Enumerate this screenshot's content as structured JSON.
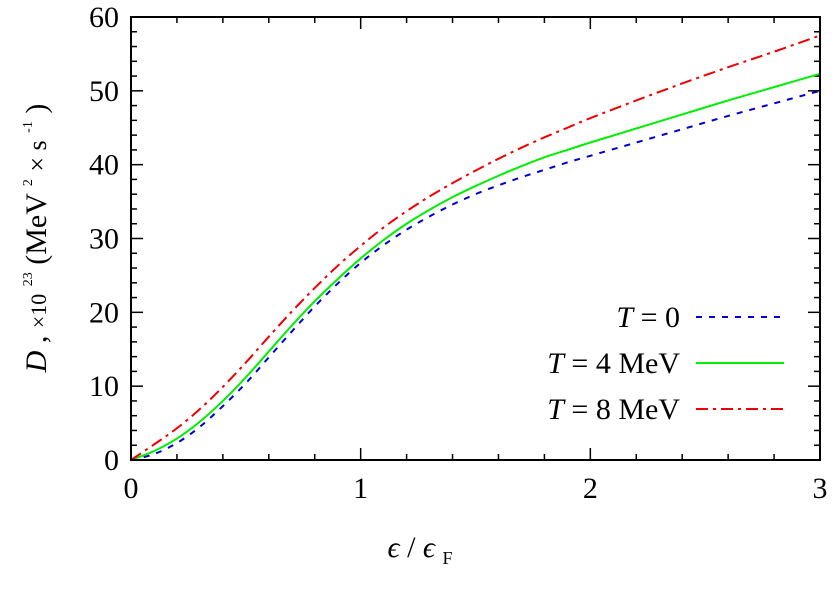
{
  "chart_data": {
    "type": "line",
    "xlabel": {
      "symbol": "ϵ",
      "slash": "/",
      "denom": "ϵ",
      "denom_sub": "F"
    },
    "ylabel": {
      "symbol": "D",
      "comma": ",",
      "factor": "×10",
      "factor_exp": "23",
      "units": "(MeV",
      "u_exp": "2",
      "times": "× s",
      "s_exp": "-1",
      "close": ")"
    },
    "xlim": [
      0,
      3
    ],
    "ylim": [
      0,
      60
    ],
    "x_ticks": [
      0,
      1,
      2,
      3
    ],
    "y_ticks": [
      0,
      10,
      20,
      30,
      40,
      50,
      60
    ],
    "grid": false,
    "legend_position": "bottom-right",
    "series": [
      {
        "name": "T = 0",
        "legend_italic": "T",
        "legend_rest": " = 0",
        "color": "#0000cc",
        "dash": "6,7",
        "x": [
          0,
          0.1,
          0.2,
          0.3,
          0.4,
          0.5,
          0.6,
          0.7,
          0.8,
          0.9,
          1.0,
          1.1,
          1.2,
          1.3,
          1.4,
          1.5,
          1.6,
          1.7,
          1.8,
          1.9,
          2.0,
          2.2,
          2.4,
          2.6,
          2.8,
          3.0
        ],
        "y": [
          0,
          0.8,
          2.3,
          4.5,
          7.3,
          10.4,
          13.9,
          17.4,
          20.8,
          23.9,
          26.7,
          29.1,
          31.2,
          33.0,
          34.6,
          36.0,
          37.2,
          38.3,
          39.3,
          40.3,
          41.2,
          43.0,
          44.8,
          46.6,
          48.3,
          50.0
        ]
      },
      {
        "name": "T = 4 MeV",
        "legend_italic": "T",
        "legend_rest": " = 4 MeV",
        "color": "#00ee00",
        "dash": "",
        "x": [
          0,
          0.1,
          0.2,
          0.3,
          0.4,
          0.5,
          0.6,
          0.7,
          0.8,
          0.9,
          1.0,
          1.1,
          1.2,
          1.3,
          1.4,
          1.5,
          1.6,
          1.7,
          1.8,
          1.9,
          2.0,
          2.2,
          2.4,
          2.6,
          2.8,
          3.0
        ],
        "y": [
          0,
          1.2,
          2.9,
          5.2,
          8.0,
          11.2,
          14.7,
          18.2,
          21.5,
          24.5,
          27.3,
          29.8,
          32.0,
          33.9,
          35.6,
          37.1,
          38.5,
          39.8,
          41.0,
          42.0,
          43.0,
          44.9,
          46.8,
          48.7,
          50.5,
          52.3
        ]
      },
      {
        "name": "T = 8 MeV",
        "legend_italic": "T",
        "legend_rest": " = 8 MeV",
        "color": "#ee0000",
        "dash": "12,5,3,5",
        "x": [
          0,
          0.1,
          0.2,
          0.3,
          0.4,
          0.5,
          0.6,
          0.7,
          0.8,
          0.9,
          1.0,
          1.1,
          1.2,
          1.3,
          1.4,
          1.5,
          1.6,
          1.7,
          1.8,
          1.9,
          2.0,
          2.2,
          2.4,
          2.6,
          2.8,
          3.0
        ],
        "y": [
          0,
          2.1,
          4.3,
          6.9,
          9.9,
          13.2,
          16.7,
          20.1,
          23.3,
          26.3,
          29.0,
          31.5,
          33.7,
          35.7,
          37.5,
          39.2,
          40.8,
          42.3,
          43.7,
          45.0,
          46.3,
          48.7,
          51.0,
          53.2,
          55.3,
          57.5
        ]
      }
    ]
  }
}
